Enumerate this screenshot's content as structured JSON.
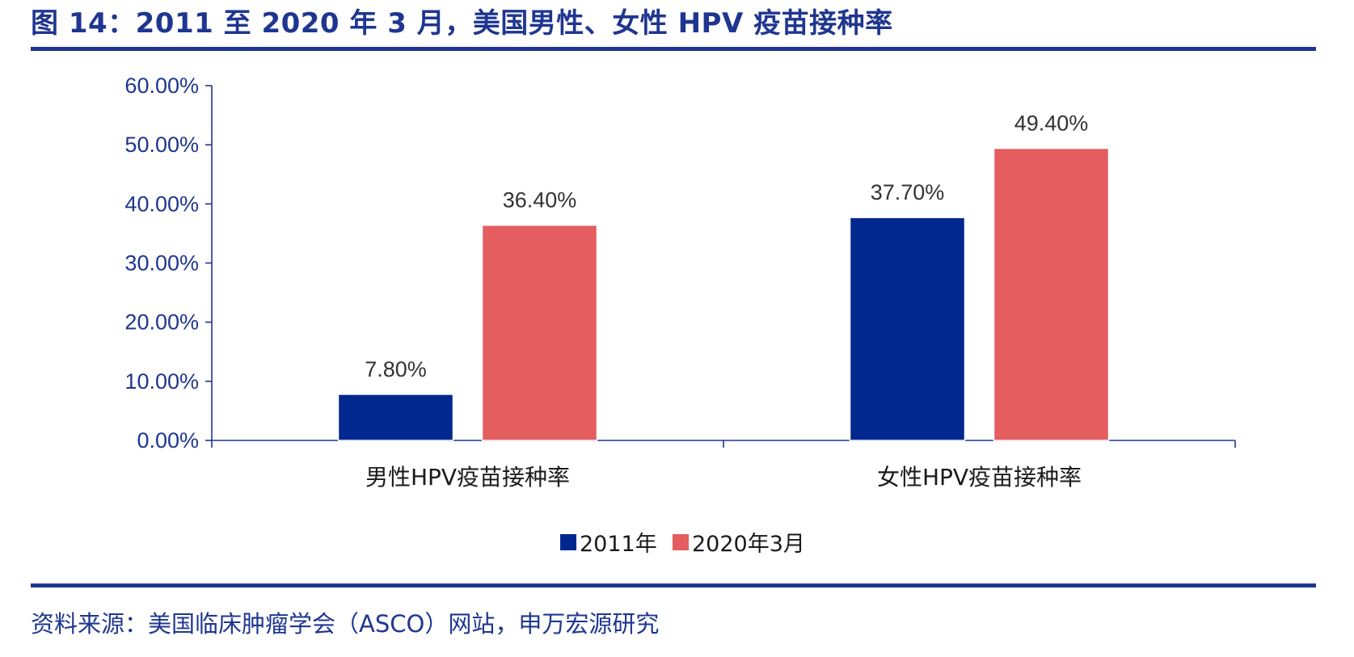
{
  "figure": {
    "title": "图 14：2011 至 2020 年 3 月，美国男性、女性 HPV 疫苗接种率",
    "source": "资料来源：美国临床肿瘤学会（ASCO）网站，申万宏源研究"
  },
  "colors": {
    "title": "#1f3690",
    "axis": "#1f3690",
    "series_2011": "#00288f",
    "series_2020": "#e45d5f"
  },
  "chart_data": {
    "type": "bar",
    "title": "",
    "xlabel": "",
    "ylabel": "",
    "categories": [
      "男性HPV疫苗接种率",
      "女性HPV疫苗接种率"
    ],
    "series": [
      {
        "name": "2011年",
        "values": [
          7.8,
          37.7
        ],
        "labels": [
          "7.80%",
          "37.70%"
        ]
      },
      {
        "name": "2020年3月",
        "values": [
          36.4,
          49.4
        ],
        "labels": [
          "36.40%",
          "49.40%"
        ]
      }
    ],
    "ylim": [
      0,
      60
    ],
    "yticks": [
      0,
      10,
      20,
      30,
      40,
      50,
      60
    ],
    "ytick_labels": [
      "0.00%",
      "10.00%",
      "20.00%",
      "30.00%",
      "40.00%",
      "50.00%",
      "60.00%"
    ],
    "grid": false,
    "legend_position": "bottom-center"
  }
}
